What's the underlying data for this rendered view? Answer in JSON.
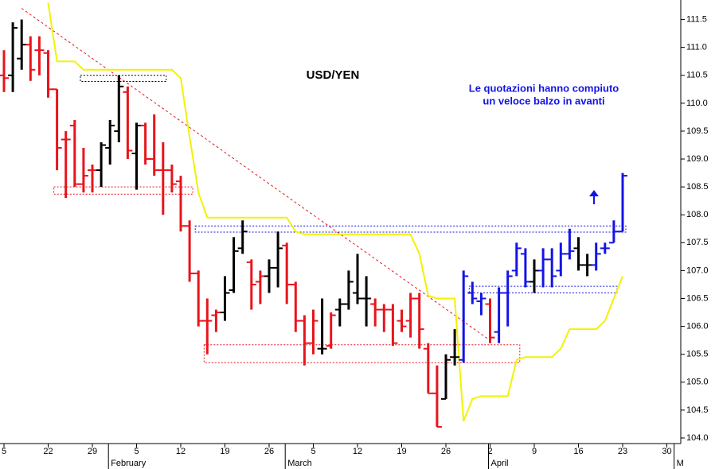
{
  "chart_data": {
    "type": "ohlc",
    "title": "USD/YEN",
    "annotation": [
      "Le quotazioni hanno compiuto",
      "un veloce balzo in avanti"
    ],
    "categories": [
      "5",
      null,
      null,
      null,
      null,
      "22",
      null,
      null,
      null,
      null,
      "29",
      null,
      null,
      null,
      null,
      "5",
      null,
      null,
      null,
      null,
      "12",
      null,
      null,
      null,
      null,
      "19",
      null,
      null,
      null,
      null,
      "26",
      null,
      null,
      null,
      null,
      "5",
      null,
      null,
      null,
      null,
      "12",
      null,
      null,
      null,
      null,
      "19",
      null,
      null,
      null,
      null,
      "26",
      null,
      null,
      null,
      null,
      "2",
      null,
      null,
      null,
      null,
      "9",
      null,
      null,
      null,
      null,
      "16",
      null,
      null,
      null,
      null,
      "23",
      null,
      null,
      null,
      null,
      "30",
      null
    ],
    "months": [
      null,
      null,
      null,
      null,
      null,
      null,
      null,
      null,
      null,
      null,
      null,
      null,
      "February",
      null,
      null,
      null,
      null,
      null,
      null,
      null,
      null,
      null,
      null,
      null,
      null,
      null,
      null,
      null,
      null,
      null,
      null,
      null,
      "March",
      null,
      null,
      null,
      null,
      null,
      null,
      null,
      null,
      null,
      null,
      null,
      null,
      null,
      null,
      null,
      null,
      null,
      null,
      null,
      null,
      null,
      null,
      "April",
      null,
      null,
      null,
      null,
      null,
      null,
      null,
      null,
      null,
      null,
      null,
      null,
      null,
      null,
      null,
      null,
      null,
      null,
      null,
      null,
      "M"
    ],
    "open": [
      110.5,
      110.5,
      110.8,
      111.05,
      110.95,
      110.9,
      110.25,
      109.35,
      109.6,
      108.55,
      108.8,
      108.8,
      109.2,
      109.5,
      110.2,
      109.1,
      109.6,
      109.0,
      108.8,
      108.8,
      108.6,
      107.8,
      106.95,
      106.1,
      106.2,
      106.25,
      106.65,
      107.4,
      107.15,
      106.8,
      106.9,
      107.05,
      107.45,
      106.75,
      106.1,
      105.7,
      105.6,
      105.65,
      106.3,
      106.4,
      106.6,
      106.5,
      106.4,
      106.3,
      106.3,
      106.1,
      106.1,
      106.5,
      105.6,
      104.8,
      104.7,
      105.45,
      105.4,
      106.6,
      106.45,
      106.4,
      105.9,
      106.6,
      107.0,
      107.3,
      106.8,
      107.0,
      107.2,
      107.0,
      107.3,
      107.4,
      107.1,
      107.1,
      107.4,
      107.5,
      107.7,
      null,
      null,
      null,
      null,
      null,
      null
    ],
    "high": [
      110.95,
      111.45,
      111.5,
      111.2,
      111.2,
      110.95,
      110.25,
      109.5,
      109.7,
      109.2,
      108.9,
      109.3,
      109.7,
      110.5,
      110.3,
      109.65,
      109.65,
      109.8,
      109.3,
      108.9,
      108.7,
      107.9,
      107.0,
      106.5,
      106.3,
      106.9,
      107.6,
      107.9,
      107.2,
      107.0,
      107.2,
      107.7,
      107.5,
      106.8,
      106.2,
      106.3,
      106.5,
      106.25,
      106.5,
      107.0,
      107.3,
      106.9,
      106.5,
      106.4,
      106.4,
      106.3,
      106.6,
      106.6,
      105.7,
      105.3,
      105.5,
      105.95,
      107.0,
      106.8,
      106.6,
      106.5,
      106.7,
      107.0,
      107.5,
      107.4,
      107.2,
      107.4,
      107.4,
      107.5,
      107.75,
      107.6,
      107.3,
      107.5,
      107.5,
      107.9,
      108.75,
      null,
      null,
      null,
      null,
      null,
      null
    ],
    "low": [
      110.2,
      110.2,
      110.6,
      110.4,
      110.5,
      110.1,
      108.8,
      108.3,
      108.5,
      108.4,
      108.4,
      108.5,
      108.9,
      109.3,
      109.0,
      108.45,
      108.9,
      108.7,
      108.0,
      108.4,
      107.7,
      106.8,
      106.0,
      105.5,
      105.9,
      106.1,
      106.6,
      107.3,
      106.3,
      106.4,
      106.6,
      106.7,
      106.4,
      105.9,
      105.3,
      105.5,
      105.5,
      105.6,
      106.0,
      106.3,
      106.4,
      106.0,
      106.0,
      105.9,
      105.65,
      105.9,
      105.8,
      105.6,
      104.8,
      104.2,
      104.7,
      105.3,
      105.35,
      106.4,
      106.2,
      105.7,
      105.7,
      106.0,
      106.9,
      106.7,
      106.6,
      106.7,
      106.7,
      106.9,
      107.2,
      107.0,
      106.9,
      107.0,
      107.3,
      107.5,
      107.7,
      null,
      null,
      null,
      null,
      null,
      null
    ],
    "close": [
      110.45,
      111.35,
      111.05,
      110.6,
      110.95,
      110.25,
      109.2,
      109.35,
      108.55,
      108.7,
      108.8,
      109.25,
      109.6,
      110.3,
      109.15,
      109.6,
      109.0,
      108.8,
      108.8,
      108.55,
      107.8,
      106.95,
      106.1,
      106.1,
      106.25,
      106.6,
      107.35,
      107.7,
      106.75,
      106.9,
      107.05,
      107.4,
      106.75,
      106.1,
      105.7,
      106.1,
      105.6,
      106.2,
      106.4,
      106.8,
      106.5,
      106.5,
      106.3,
      106.3,
      105.7,
      106.0,
      106.5,
      105.95,
      104.8,
      104.2,
      105.4,
      105.45,
      106.9,
      106.5,
      106.5,
      105.8,
      106.6,
      106.9,
      107.4,
      106.8,
      107.0,
      107.2,
      106.9,
      107.3,
      107.35,
      107.1,
      107.1,
      107.3,
      107.4,
      107.7,
      108.7,
      null,
      null,
      null,
      null,
      null,
      null
    ],
    "colors": [
      "#e8141c",
      "#000000",
      "#000000",
      "#e8141c",
      "#e8141c",
      "#e8141c",
      "#e8141c",
      "#e8141c",
      "#e8141c",
      "#e8141c",
      "#e8141c",
      "#000000",
      "#000000",
      "#000000",
      "#e8141c",
      "#000000",
      "#e8141c",
      "#e8141c",
      "#e8141c",
      "#e8141c",
      "#e8141c",
      "#e8141c",
      "#e8141c",
      "#e8141c",
      "#e8141c",
      "#000000",
      "#000000",
      "#000000",
      "#e8141c",
      "#e8141c",
      "#000000",
      "#000000",
      "#e8141c",
      "#e8141c",
      "#e8141c",
      "#e8141c",
      "#000000",
      "#e8141c",
      "#000000",
      "#000000",
      "#000000",
      "#000000",
      "#e8141c",
      "#e8141c",
      "#e8141c",
      "#e8141c",
      "#e8141c",
      "#e8141c",
      "#e8141c",
      "#e8141c",
      "#000000",
      "#000000",
      "#1414e6",
      "#1414e6",
      "#1414e6",
      "#e8141c",
      "#1414e6",
      "#1414e6",
      "#1414e6",
      "#1414e6",
      "#000000",
      "#1414e6",
      "#1414e6",
      "#1414e6",
      "#1414e6",
      "#000000",
      "#000000",
      "#1414e6",
      "#1414e6",
      "#1414e6",
      "#1414e6",
      null,
      null,
      null,
      null,
      null,
      null
    ],
    "overlay": {
      "color": "#f2f200",
      "values": [
        null,
        null,
        null,
        null,
        null,
        111.8,
        110.75,
        110.75,
        110.75,
        110.6,
        110.6,
        110.6,
        110.6,
        110.6,
        110.6,
        110.6,
        110.6,
        110.6,
        110.6,
        110.6,
        110.45,
        109.4,
        108.4,
        107.95,
        107.95,
        107.95,
        107.95,
        107.95,
        107.95,
        107.95,
        107.95,
        107.95,
        107.95,
        107.7,
        107.65,
        107.65,
        107.65,
        107.65,
        107.65,
        107.65,
        107.65,
        107.65,
        107.65,
        107.65,
        107.65,
        107.65,
        107.65,
        107.3,
        106.55,
        106.5,
        106.5,
        106.5,
        104.3,
        104.7,
        104.75,
        104.75,
        104.75,
        104.75,
        105.4,
        105.45,
        105.45,
        105.45,
        105.45,
        105.6,
        105.95,
        105.95,
        105.95,
        105.95,
        106.1,
        106.5,
        106.9,
        null,
        null,
        null,
        null,
        null,
        null
      ]
    },
    "trendline": {
      "from": 2,
      "to": 55,
      "start": 111.7,
      "end": 105.75,
      "color": "#e8141c"
    },
    "zones": [
      {
        "from": 9,
        "to": 18,
        "top": 110.5,
        "bottom": 110.39,
        "color": "#000000"
      },
      {
        "from": 6,
        "to": 21,
        "top": 108.5,
        "bottom": 108.37,
        "color": "#e8141c"
      },
      {
        "from": 22,
        "to": 70,
        "top": 107.8,
        "bottom": 107.69,
        "color": "#1414e6"
      },
      {
        "from": 23,
        "to": 58,
        "top": 105.67,
        "bottom": 105.35,
        "color": "#e8141c"
      },
      {
        "from": 53,
        "to": 69,
        "top": 106.72,
        "bottom": 106.6,
        "color": "#1414e6"
      }
    ],
    "ylim": [
      103.9,
      111.85
    ],
    "yticks": [
      {
        "value": 104,
        "label": "104.0"
      },
      104.5,
      {
        "value": 105,
        "label": "105.0"
      },
      105.5,
      {
        "value": 106,
        "label": "106.0"
      },
      106.5,
      {
        "value": 107,
        "label": "107.0"
      },
      107.5,
      {
        "value": 108,
        "label": "108.0"
      },
      108.5,
      {
        "value": 109,
        "label": "109.0"
      },
      109.5,
      {
        "value": 110,
        "label": "110.0"
      },
      110.5,
      {
        "value": 111,
        "label": "111.0"
      },
      111.5
    ]
  }
}
